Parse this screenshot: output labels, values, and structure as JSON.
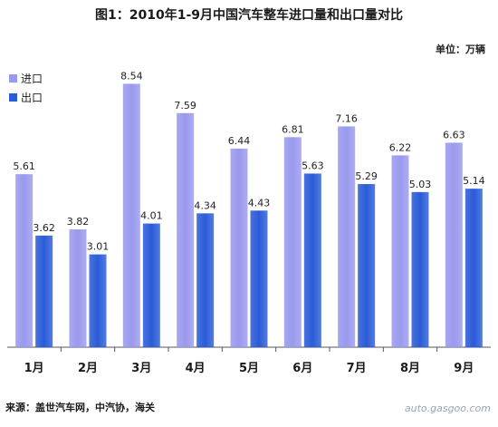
{
  "chart_data": {
    "type": "bar",
    "title": "图1：2010年1-9月中国汽车整车进口量和出口量对比",
    "unit_label": "单位：万辆",
    "categories": [
      "1月",
      "2月",
      "3月",
      "4月",
      "5月",
      "6月",
      "7月",
      "8月",
      "9月"
    ],
    "series": [
      {
        "name": "进口",
        "color": "#9999ee",
        "values": [
          5.61,
          3.82,
          8.54,
          7.59,
          6.44,
          6.81,
          7.16,
          6.22,
          6.63
        ]
      },
      {
        "name": "出口",
        "color": "#2a5bd7",
        "values": [
          3.62,
          3.01,
          4.01,
          4.34,
          4.43,
          5.63,
          5.29,
          5.03,
          5.14
        ]
      }
    ],
    "ylim": [
      0,
      9.2
    ],
    "grid": false,
    "legend_position": "top-left",
    "source": "来源：盖世汽车网，中汽协，海关",
    "watermark": "auto.gasgoo.com"
  }
}
